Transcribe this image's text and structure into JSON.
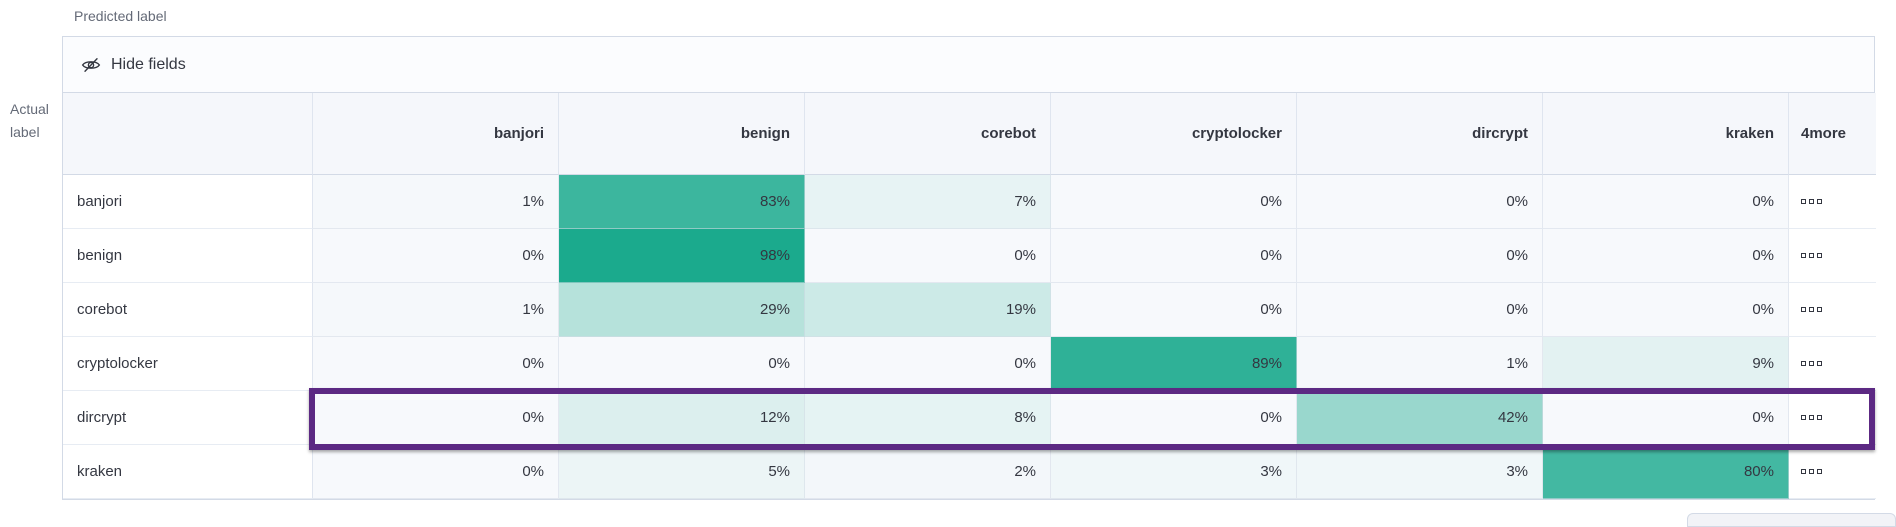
{
  "axis": {
    "predicted_label": "Predicted label",
    "actual_label": "Actual label"
  },
  "toolbar": {
    "hide_fields_label": "Hide fields"
  },
  "matrix": {
    "columns": [
      "banjori",
      "benign",
      "corebot",
      "cryptolocker",
      "dircrypt",
      "kraken"
    ],
    "more_column_lines": [
      "4",
      "more"
    ],
    "rows": [
      {
        "label": "banjori",
        "values": [
          1,
          83,
          7,
          0,
          0,
          0
        ]
      },
      {
        "label": "benign",
        "values": [
          0,
          98,
          0,
          0,
          0,
          0
        ]
      },
      {
        "label": "corebot",
        "values": [
          1,
          29,
          19,
          0,
          0,
          0
        ]
      },
      {
        "label": "cryptolocker",
        "values": [
          0,
          0,
          0,
          89,
          1,
          9
        ]
      },
      {
        "label": "dircrypt",
        "values": [
          0,
          12,
          8,
          0,
          42,
          0
        ],
        "highlighted": true
      },
      {
        "label": "kraken",
        "values": [
          0,
          5,
          2,
          3,
          3,
          80
        ]
      }
    ],
    "value_suffix": "%"
  },
  "colors": {
    "heat_min": "#f7f9fc",
    "heat_max": "#16a88b",
    "highlight_border": "#5c2983"
  },
  "icons": {
    "hide_fields": "eye-slash-icon",
    "row_actions": "ellipsis-boxes-icon"
  }
}
